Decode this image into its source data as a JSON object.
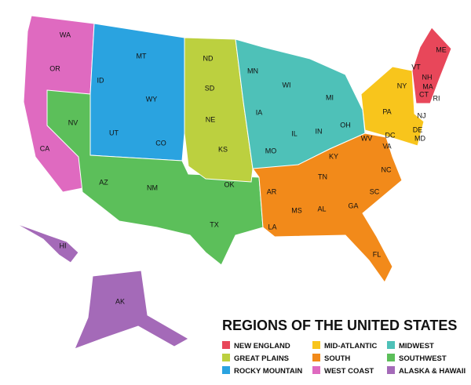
{
  "title": "REGIONS OF THE UNITED STATES",
  "legend": [
    {
      "label": "NEW ENGLAND",
      "color": "#e8475a"
    },
    {
      "label": "MID-ATLANTIC",
      "color": "#f8c51c"
    },
    {
      "label": "MIDWEST",
      "color": "#4ec1b8"
    },
    {
      "label": "GREAT PLAINS",
      "color": "#bcd03f"
    },
    {
      "label": "SOUTH",
      "color": "#f28a1a"
    },
    {
      "label": "SOUTHWEST",
      "color": "#5cbf5a"
    },
    {
      "label": "ROCKY MOUNTAIN",
      "color": "#2aa3e0"
    },
    {
      "label": "WEST COAST",
      "color": "#df6ac0"
    },
    {
      "label": "ALASKA & HAWAII",
      "color": "#a46ab8"
    }
  ],
  "states": [
    "WA",
    "OR",
    "CA",
    "ID",
    "MT",
    "WY",
    "NV",
    "UT",
    "CO",
    "AZ",
    "NM",
    "ND",
    "SD",
    "NE",
    "KS",
    "OK",
    "TX",
    "MN",
    "WI",
    "MI",
    "IA",
    "IL",
    "IN",
    "OH",
    "MO",
    "KY",
    "TN",
    "AR",
    "LA",
    "MS",
    "AL",
    "GA",
    "FL",
    "SC",
    "NC",
    "VA",
    "WV",
    "PA",
    "NY",
    "NJ",
    "DE",
    "MD",
    "DC",
    "CT",
    "RI",
    "MA",
    "VT",
    "NH",
    "ME",
    "HI",
    "AK"
  ]
}
